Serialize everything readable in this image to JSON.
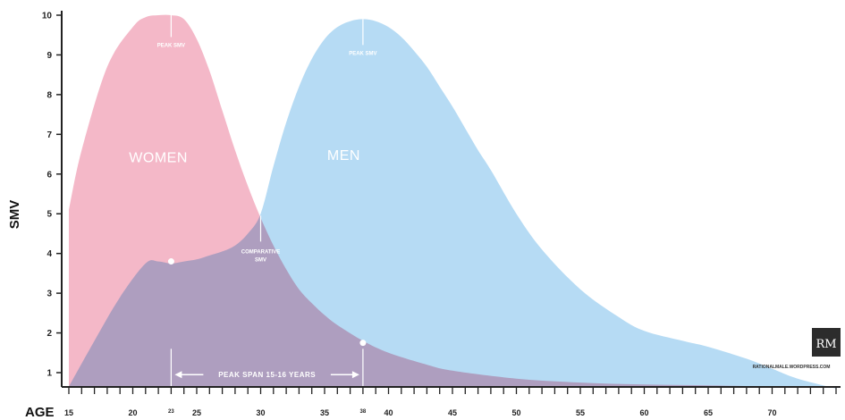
{
  "chart_data": {
    "type": "area",
    "xlabel": "AGE",
    "ylabel": "SMV",
    "xlim": [
      15,
      75
    ],
    "ylim": [
      0.5,
      10.2
    ],
    "x_ticks": [
      15,
      20,
      23,
      25,
      30,
      35,
      38,
      40,
      45,
      50,
      55,
      60,
      65,
      70
    ],
    "y_ticks": [
      1,
      2,
      3,
      4,
      5,
      6,
      7,
      8,
      9,
      10
    ],
    "grid": false,
    "series": [
      {
        "name": "WOMEN",
        "color": "#f4b8c8",
        "x": [
          15,
          16,
          18,
          20,
          21,
          22,
          23,
          24,
          25,
          26,
          27,
          28,
          29,
          30,
          31,
          32,
          33,
          34,
          35,
          36,
          38,
          40,
          43,
          45,
          50,
          55,
          60,
          65,
          70
        ],
        "y": [
          5.1,
          6.6,
          8.7,
          9.7,
          9.95,
          10.0,
          10.0,
          9.9,
          9.4,
          8.6,
          7.6,
          6.6,
          5.7,
          4.9,
          4.2,
          3.6,
          3.1,
          2.75,
          2.45,
          2.2,
          1.8,
          1.5,
          1.2,
          1.05,
          0.85,
          0.75,
          0.7,
          0.68,
          0.65
        ]
      },
      {
        "name": "MEN",
        "color": "#a9d5f2",
        "x": [
          15,
          17,
          19,
          21,
          22,
          23,
          24,
          25,
          26,
          27,
          28,
          29,
          30,
          31,
          32,
          33,
          34,
          35,
          36,
          37,
          38,
          39,
          40,
          41,
          42,
          43,
          44,
          45,
          46,
          47,
          48,
          50,
          52,
          55,
          58,
          60,
          63,
          65,
          68,
          70,
          72,
          75
        ],
        "y": [
          0.65,
          1.8,
          2.9,
          3.75,
          3.8,
          3.75,
          3.8,
          3.85,
          3.95,
          4.05,
          4.2,
          4.5,
          5.0,
          6.2,
          7.3,
          8.2,
          8.9,
          9.4,
          9.7,
          9.85,
          9.9,
          9.85,
          9.7,
          9.45,
          9.1,
          8.7,
          8.2,
          7.7,
          7.15,
          6.6,
          6.1,
          5.0,
          4.1,
          3.1,
          2.4,
          2.05,
          1.8,
          1.65,
          1.35,
          1.1,
          0.85,
          0.6
        ]
      }
    ],
    "annotations": {
      "women_peak": {
        "text": "PEAK SMV",
        "x": 23,
        "y": 9.2
      },
      "men_peak": {
        "text": "PEAK SMV",
        "x": 38,
        "y": 9.0
      },
      "comparative": {
        "line1": "COMPARATIVE",
        "line2": "SMV",
        "x": 30,
        "y": 4.0
      },
      "peak_span": {
        "text": "PEAK SPAN 15-16 YEARS",
        "x_start": 23,
        "x_end": 38,
        "y": 0.95
      },
      "women_label": {
        "text": "WOMEN",
        "x": 22,
        "y": 6.3
      },
      "men_label": {
        "text": "MEN",
        "x": 36.5,
        "y": 6.35
      },
      "dots": [
        {
          "x": 23,
          "y": 3.8
        },
        {
          "x": 38,
          "y": 1.75
        }
      ]
    },
    "logo": "RM",
    "site": "RATIONALMALE.WORDPRESS.COM"
  }
}
